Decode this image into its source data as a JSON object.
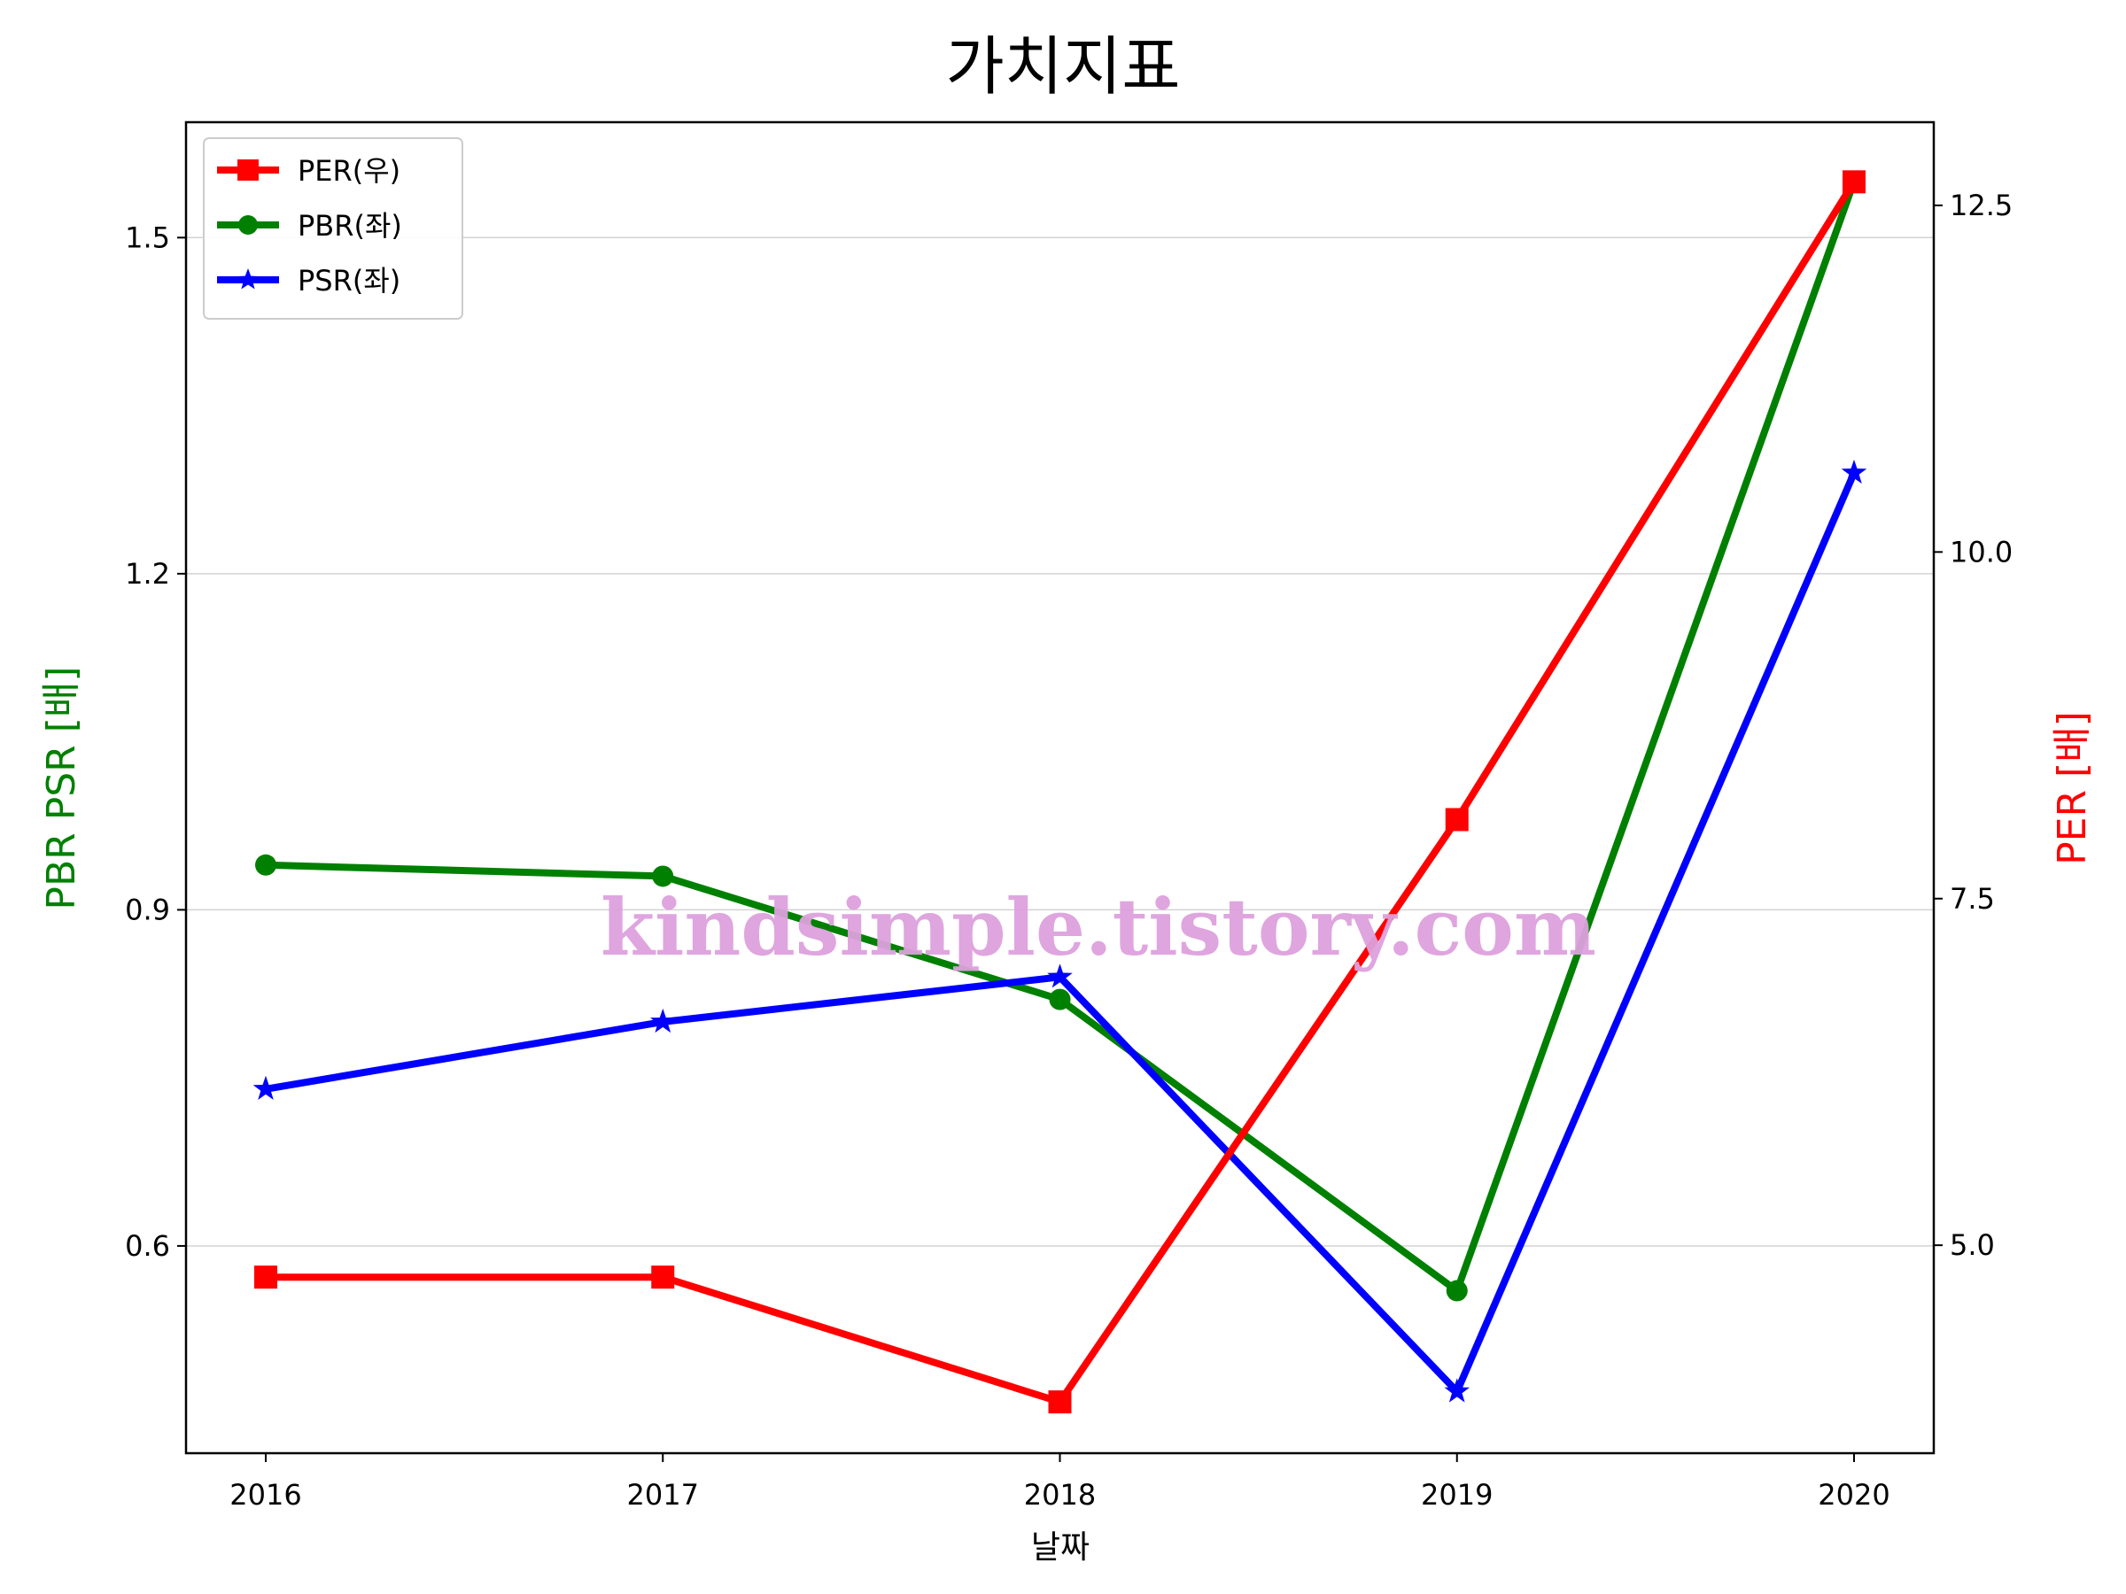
{
  "chart_data": {
    "type": "line",
    "title": "가치지표",
    "xlabel": "날짜",
    "ylabel_left": "PBR PSR [배]",
    "ylabel_right": "PER [배]",
    "categories": [
      "2016",
      "2017",
      "2018",
      "2019",
      "2020"
    ],
    "ylim_left": [
      0.415,
      1.603
    ],
    "ylim_right": [
      3.5,
      13.1
    ],
    "yticks_left": [
      "0.6",
      "0.9",
      "1.2",
      "1.5"
    ],
    "yticks_right": [
      "5.0",
      "7.5",
      "10.0",
      "12.5"
    ],
    "grid": "horizontal (left axis)",
    "legend_position": "top-left",
    "watermark": "kindsimple.tistory.com",
    "series": [
      {
        "name": "PER(우)",
        "axis": "right",
        "color": "#ff0000",
        "marker": "square",
        "values": [
          4.77,
          4.77,
          3.87,
          8.07,
          12.67
        ]
      },
      {
        "name": "PBR(좌)",
        "axis": "left",
        "color": "#008000",
        "marker": "circle",
        "values": [
          0.94,
          0.93,
          0.82,
          0.56,
          1.55
        ]
      },
      {
        "name": "PSR(좌)",
        "axis": "left",
        "color": "#0000ff",
        "marker": "star",
        "values": [
          0.74,
          0.8,
          0.84,
          0.47,
          1.29
        ]
      }
    ]
  }
}
